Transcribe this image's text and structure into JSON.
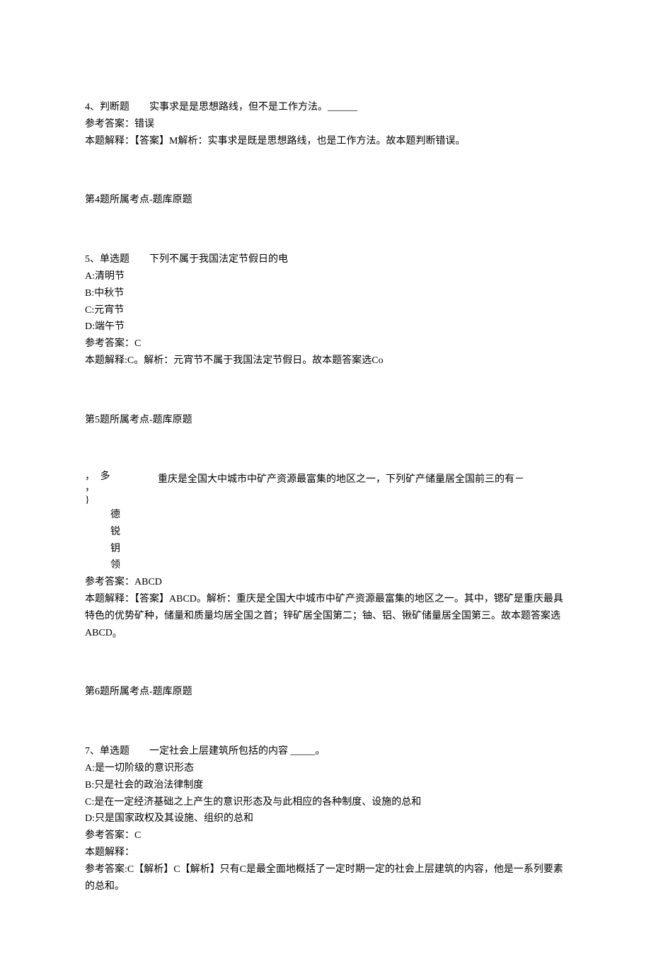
{
  "q4": {
    "header": "4、判断题　　实事求是是思想路线，但不是工作方法。______",
    "answer_label": "参考答案：错误",
    "explain": "本题解释：【答案】M解析：实事求是既是思想路线，也是工作方法。故本题判断错误。",
    "tag": "第4题所属考点-题库原题"
  },
  "q5": {
    "header": "5、单选题　　下列不属于我国法定节假日的电",
    "optA": "A:清明节",
    "optB": "B:中秋节",
    "optC": "C:元宵节",
    "optD": "D:端午节",
    "answer_label": "参考答案：C",
    "explain": "本题解释:C。解析：元宵节不属于我国法定节假日。故本题答案选Co",
    "tag": "第5题所属考点-题库原题"
  },
  "q6": {
    "v1": "，",
    "v2": "，",
    "v3": "}",
    "side1": "多",
    "side2": "",
    "main": "重庆是全国大中城市中矿产资源最富集的地区之一，下列矿产储量居全国前三的有－",
    "opt1": "德",
    "opt2": "锐",
    "opt3": "钥",
    "opt4": "领",
    "answer_label": "参考答案：ABCD",
    "explain": "本题解释：【答案】ABCD。解析：重庆是全国大中城市中矿产资源最富集的地区之一。其中，锶矿是重庆最具特色的优势矿种，储量和质量均居全国之首；锌矿居全国第二；铀、铝、锹矿储量居全国第三。故本题答案选ABCD₀",
    "tag": "第6题所属考点-题库原题"
  },
  "q7": {
    "header": "7、单选题　　一定社会上层建筑所包括的内容 _____。",
    "optA": "A:是一切阶级的意识形态",
    "optB": "B:只是社会的政治法律制度",
    "optC": "C:是在一定经济基础之上产生的意识形态及与此相应的各种制度、设施的总和",
    "optD": "D:只是国家政权及其设施、组织的总和",
    "answer_label": "参考答案：C",
    "explain_label": "本题解释：",
    "explain": "参考答案:C【解析】C【解析】只有C是最全面地概括了一定时期一定的社会上层建筑的内容，他是一系列要素的总和。"
  }
}
